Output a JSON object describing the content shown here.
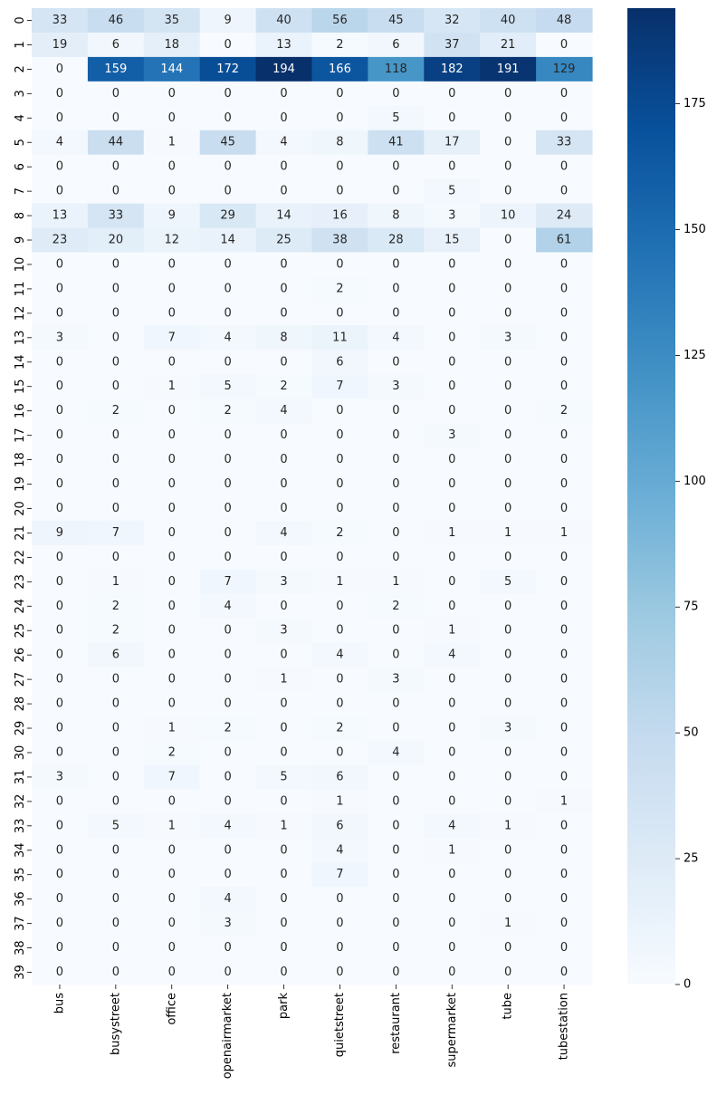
{
  "chart_data": {
    "type": "heatmap",
    "title": "",
    "xlabel": "",
    "ylabel": "",
    "colormap": "Blues",
    "color_range": [
      0,
      194
    ],
    "colorbar_ticks": [
      0,
      25,
      50,
      75,
      100,
      125,
      150,
      175
    ],
    "x_categories": [
      "bus",
      "busystreet",
      "office",
      "openairmarket",
      "park",
      "quietstreet",
      "restaurant",
      "supermarket",
      "tube",
      "tubestation"
    ],
    "y_categories": [
      "0",
      "1",
      "2",
      "3",
      "4",
      "5",
      "6",
      "7",
      "8",
      "9",
      "10",
      "11",
      "12",
      "13",
      "14",
      "15",
      "16",
      "17",
      "18",
      "19",
      "20",
      "21",
      "22",
      "23",
      "24",
      "25",
      "26",
      "27",
      "28",
      "29",
      "30",
      "31",
      "32",
      "33",
      "34",
      "35",
      "36",
      "37",
      "38",
      "39"
    ],
    "values": [
      [
        33,
        46,
        35,
        9,
        40,
        56,
        45,
        32,
        40,
        48
      ],
      [
        19,
        6,
        18,
        0,
        13,
        2,
        6,
        37,
        21,
        0
      ],
      [
        0,
        159,
        144,
        172,
        194,
        166,
        118,
        182,
        191,
        129
      ],
      [
        0,
        0,
        0,
        0,
        0,
        0,
        0,
        0,
        0,
        0
      ],
      [
        0,
        0,
        0,
        0,
        0,
        0,
        5,
        0,
        0,
        0
      ],
      [
        4,
        44,
        1,
        45,
        4,
        8,
        41,
        17,
        0,
        33
      ],
      [
        0,
        0,
        0,
        0,
        0,
        0,
        0,
        0,
        0,
        0
      ],
      [
        0,
        0,
        0,
        0,
        0,
        0,
        0,
        5,
        0,
        0
      ],
      [
        13,
        33,
        9,
        29,
        14,
        16,
        8,
        3,
        10,
        24
      ],
      [
        23,
        20,
        12,
        14,
        25,
        38,
        28,
        15,
        0,
        61
      ],
      [
        0,
        0,
        0,
        0,
        0,
        0,
        0,
        0,
        0,
        0
      ],
      [
        0,
        0,
        0,
        0,
        0,
        2,
        0,
        0,
        0,
        0
      ],
      [
        0,
        0,
        0,
        0,
        0,
        0,
        0,
        0,
        0,
        0
      ],
      [
        3,
        0,
        7,
        4,
        8,
        11,
        4,
        0,
        3,
        0
      ],
      [
        0,
        0,
        0,
        0,
        0,
        6,
        0,
        0,
        0,
        0
      ],
      [
        0,
        0,
        1,
        5,
        2,
        7,
        3,
        0,
        0,
        0
      ],
      [
        0,
        2,
        0,
        2,
        4,
        0,
        0,
        0,
        0,
        2
      ],
      [
        0,
        0,
        0,
        0,
        0,
        0,
        0,
        3,
        0,
        0
      ],
      [
        0,
        0,
        0,
        0,
        0,
        0,
        0,
        0,
        0,
        0
      ],
      [
        0,
        0,
        0,
        0,
        0,
        0,
        0,
        0,
        0,
        0
      ],
      [
        0,
        0,
        0,
        0,
        0,
        0,
        0,
        0,
        0,
        0
      ],
      [
        9,
        7,
        0,
        0,
        4,
        2,
        0,
        1,
        1,
        1
      ],
      [
        0,
        0,
        0,
        0,
        0,
        0,
        0,
        0,
        0,
        0
      ],
      [
        0,
        1,
        0,
        7,
        3,
        1,
        1,
        0,
        5,
        0
      ],
      [
        0,
        2,
        0,
        4,
        0,
        0,
        2,
        0,
        0,
        0
      ],
      [
        0,
        2,
        0,
        0,
        3,
        0,
        0,
        1,
        0,
        0
      ],
      [
        0,
        6,
        0,
        0,
        0,
        4,
        0,
        4,
        0,
        0
      ],
      [
        0,
        0,
        0,
        0,
        1,
        0,
        3,
        0,
        0,
        0
      ],
      [
        0,
        0,
        0,
        0,
        0,
        0,
        0,
        0,
        0,
        0
      ],
      [
        0,
        0,
        1,
        2,
        0,
        2,
        0,
        0,
        3,
        0
      ],
      [
        0,
        0,
        2,
        0,
        0,
        0,
        4,
        0,
        0,
        0
      ],
      [
        3,
        0,
        7,
        0,
        5,
        6,
        0,
        0,
        0,
        0
      ],
      [
        0,
        0,
        0,
        0,
        0,
        1,
        0,
        0,
        0,
        1
      ],
      [
        0,
        5,
        1,
        4,
        1,
        6,
        0,
        4,
        1,
        0
      ],
      [
        0,
        0,
        0,
        0,
        0,
        4,
        0,
        1,
        0,
        0
      ],
      [
        0,
        0,
        0,
        0,
        0,
        7,
        0,
        0,
        0,
        0
      ],
      [
        0,
        0,
        0,
        4,
        0,
        0,
        0,
        0,
        0,
        0
      ],
      [
        0,
        0,
        0,
        3,
        0,
        0,
        0,
        0,
        1,
        0
      ],
      [
        0,
        0,
        0,
        0,
        0,
        0,
        0,
        0,
        0,
        0
      ],
      [
        0,
        0,
        0,
        0,
        0,
        0,
        0,
        0,
        0,
        0
      ]
    ],
    "annotations": true,
    "grid": false,
    "legend": "colorbar-right"
  }
}
